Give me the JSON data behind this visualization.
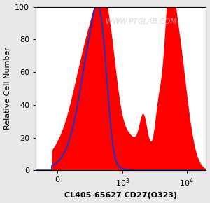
{
  "title": "WWW.PTGLAB.COM",
  "xlabel": "CL405-65627 CD27(O323)",
  "ylabel": "Relative Cell Number",
  "ylim": [
    0,
    100
  ],
  "bg_color": "#e8e8e8",
  "plot_bg": "#ffffff",
  "blue_color": "#2233bb",
  "red_color": "#ff0000",
  "red_fill_alpha": 1.0,
  "blue_linewidth": 1.5,
  "watermark_color": "#c8c8c8",
  "watermark_alpha": 0.7,
  "linthresh": 300,
  "linscale": 0.45
}
